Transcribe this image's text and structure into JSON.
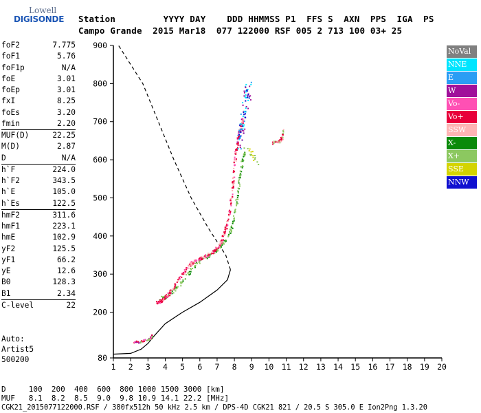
{
  "logo": {
    "line1": "Lowell",
    "line2": "DIGISONDE"
  },
  "header": {
    "line1": "Station         YYYY DAY    DDD HHMMSS P1  FFS S  AXN  PPS  IGA  PS",
    "line2": "Campo Grande  2015 Mar18  077 122000 RSF 005 2 713 100 03+ 25"
  },
  "params": [
    {
      "label": "foF2",
      "value": "7.775"
    },
    {
      "label": "foF1",
      "value": "5.76"
    },
    {
      "label": "foF1p",
      "value": "N/A"
    },
    {
      "label": "foE",
      "value": "3.01"
    },
    {
      "label": "foEp",
      "value": "3.01"
    },
    {
      "label": "fxI",
      "value": "8.25"
    },
    {
      "label": "foEs",
      "value": "3.20"
    },
    {
      "label": "fmin",
      "value": "2.20"
    },
    {
      "label": "MUF(D)",
      "value": "22.25"
    },
    {
      "label": "M(D)",
      "value": "2.87"
    },
    {
      "label": "D",
      "value": "N/A"
    },
    {
      "label": "h`F",
      "value": "224.0"
    },
    {
      "label": "h`F2",
      "value": "343.5"
    },
    {
      "label": "h`E",
      "value": "105.0"
    },
    {
      "label": "h`Es",
      "value": "122.5"
    },
    {
      "label": "hmF2",
      "value": "311.6"
    },
    {
      "label": "hmF1",
      "value": "223.1"
    },
    {
      "label": "hmE",
      "value": "102.9"
    },
    {
      "label": "yF2",
      "value": "125.5"
    },
    {
      "label": "yF1",
      "value": "66.2"
    },
    {
      "label": "yE",
      "value": "12.6"
    },
    {
      "label": "B0",
      "value": "128.3"
    },
    {
      "label": "B1",
      "value": "2.34"
    },
    {
      "label": "C-level",
      "value": "22"
    }
  ],
  "param_separators_before": [
    8,
    11,
    15,
    23
  ],
  "autoscale": {
    "line1": "Auto:",
    "line2": "Artist5",
    "line3": "500200"
  },
  "legend": [
    {
      "label": "NoVal",
      "color": "#808080"
    },
    {
      "label": "NNE",
      "color": "#00e5ff"
    },
    {
      "label": "E",
      "color": "#2a9df4"
    },
    {
      "label": "W",
      "color": "#a0109a"
    },
    {
      "label": "Vo-",
      "color": "#ff50b4"
    },
    {
      "label": "Vo+",
      "color": "#e8003a"
    },
    {
      "label": "SSW",
      "color": "#ffb4b4"
    },
    {
      "label": "X-",
      "color": "#0a8a0a"
    },
    {
      "label": "X+",
      "color": "#8cc860"
    },
    {
      "label": "SSE",
      "color": "#d4d400"
    },
    {
      "label": "NNW",
      "color": "#1010d0"
    }
  ],
  "bottom": {
    "line1": "D     100  200  400  600  800 1000 1500 3000 [km]",
    "line2": "MUF   8.1  8.2  8.5  9.0  9.8 10.9 14.1 22.2 [MHz]",
    "line3": "CGK21_2015077122000.RSF / 380fx512h 50 kHz 2.5 km / DPS-4D CGK21 821 / 20.5 S 305.0 E Ion2Png 1.3.20"
  },
  "chart_data": {
    "type": "scatter",
    "xlim": [
      1,
      20
    ],
    "ylim": [
      80,
      900
    ],
    "xticks": [
      1,
      2,
      3,
      4,
      5,
      6,
      7,
      8,
      9,
      10,
      11,
      12,
      13,
      14,
      15,
      16,
      17,
      18,
      19,
      20
    ],
    "yticks": [
      80,
      200,
      300,
      400,
      500,
      600,
      700,
      800,
      900
    ],
    "o_trace": [
      [
        3.5,
        228
      ],
      [
        3.7,
        230
      ],
      [
        3.9,
        236
      ],
      [
        4.1,
        245
      ],
      [
        4.4,
        262
      ],
      [
        4.8,
        290
      ],
      [
        5.2,
        318
      ],
      [
        5.6,
        334
      ],
      [
        6.0,
        342
      ],
      [
        6.4,
        350
      ],
      [
        6.8,
        362
      ],
      [
        7.1,
        378
      ],
      [
        7.3,
        395
      ],
      [
        7.5,
        425
      ],
      [
        7.7,
        470
      ],
      [
        7.85,
        520
      ],
      [
        7.95,
        570
      ],
      [
        8.05,
        620
      ],
      [
        8.2,
        660
      ],
      [
        8.35,
        690
      ],
      [
        8.5,
        710
      ]
    ],
    "x_trace": [
      [
        3.6,
        236
      ],
      [
        4.0,
        242
      ],
      [
        4.5,
        260
      ],
      [
        5.0,
        285
      ],
      [
        5.5,
        315
      ],
      [
        6.0,
        338
      ],
      [
        6.5,
        350
      ],
      [
        7.0,
        365
      ],
      [
        7.5,
        390
      ],
      [
        7.8,
        420
      ],
      [
        8.0,
        460
      ],
      [
        8.15,
        510
      ],
      [
        8.3,
        560
      ],
      [
        8.45,
        600
      ],
      [
        8.6,
        630
      ]
    ],
    "es_trace": [
      [
        2.2,
        122
      ],
      [
        2.5,
        124
      ],
      [
        2.8,
        127
      ],
      [
        3.1,
        132
      ],
      [
        3.2,
        140
      ]
    ],
    "far_o_trace": [
      [
        10.2,
        645
      ],
      [
        10.4,
        648
      ],
      [
        10.6,
        650
      ],
      [
        10.75,
        660
      ],
      [
        10.8,
        690
      ]
    ],
    "profile_solid": [
      [
        1.0,
        90
      ],
      [
        2.0,
        92
      ],
      [
        2.6,
        103
      ],
      [
        3.0,
        118
      ],
      [
        3.4,
        140
      ],
      [
        4.0,
        170
      ],
      [
        5.0,
        200
      ],
      [
        6.0,
        226
      ],
      [
        7.0,
        258
      ],
      [
        7.6,
        285
      ],
      [
        7.775,
        311.6
      ]
    ],
    "profile_dashed": [
      [
        7.775,
        311.6
      ],
      [
        7.5,
        350
      ],
      [
        6.5,
        420
      ],
      [
        5.5,
        500
      ],
      [
        4.5,
        600
      ],
      [
        3.6,
        700
      ],
      [
        2.7,
        800
      ],
      [
        1.3,
        900
      ]
    ]
  }
}
